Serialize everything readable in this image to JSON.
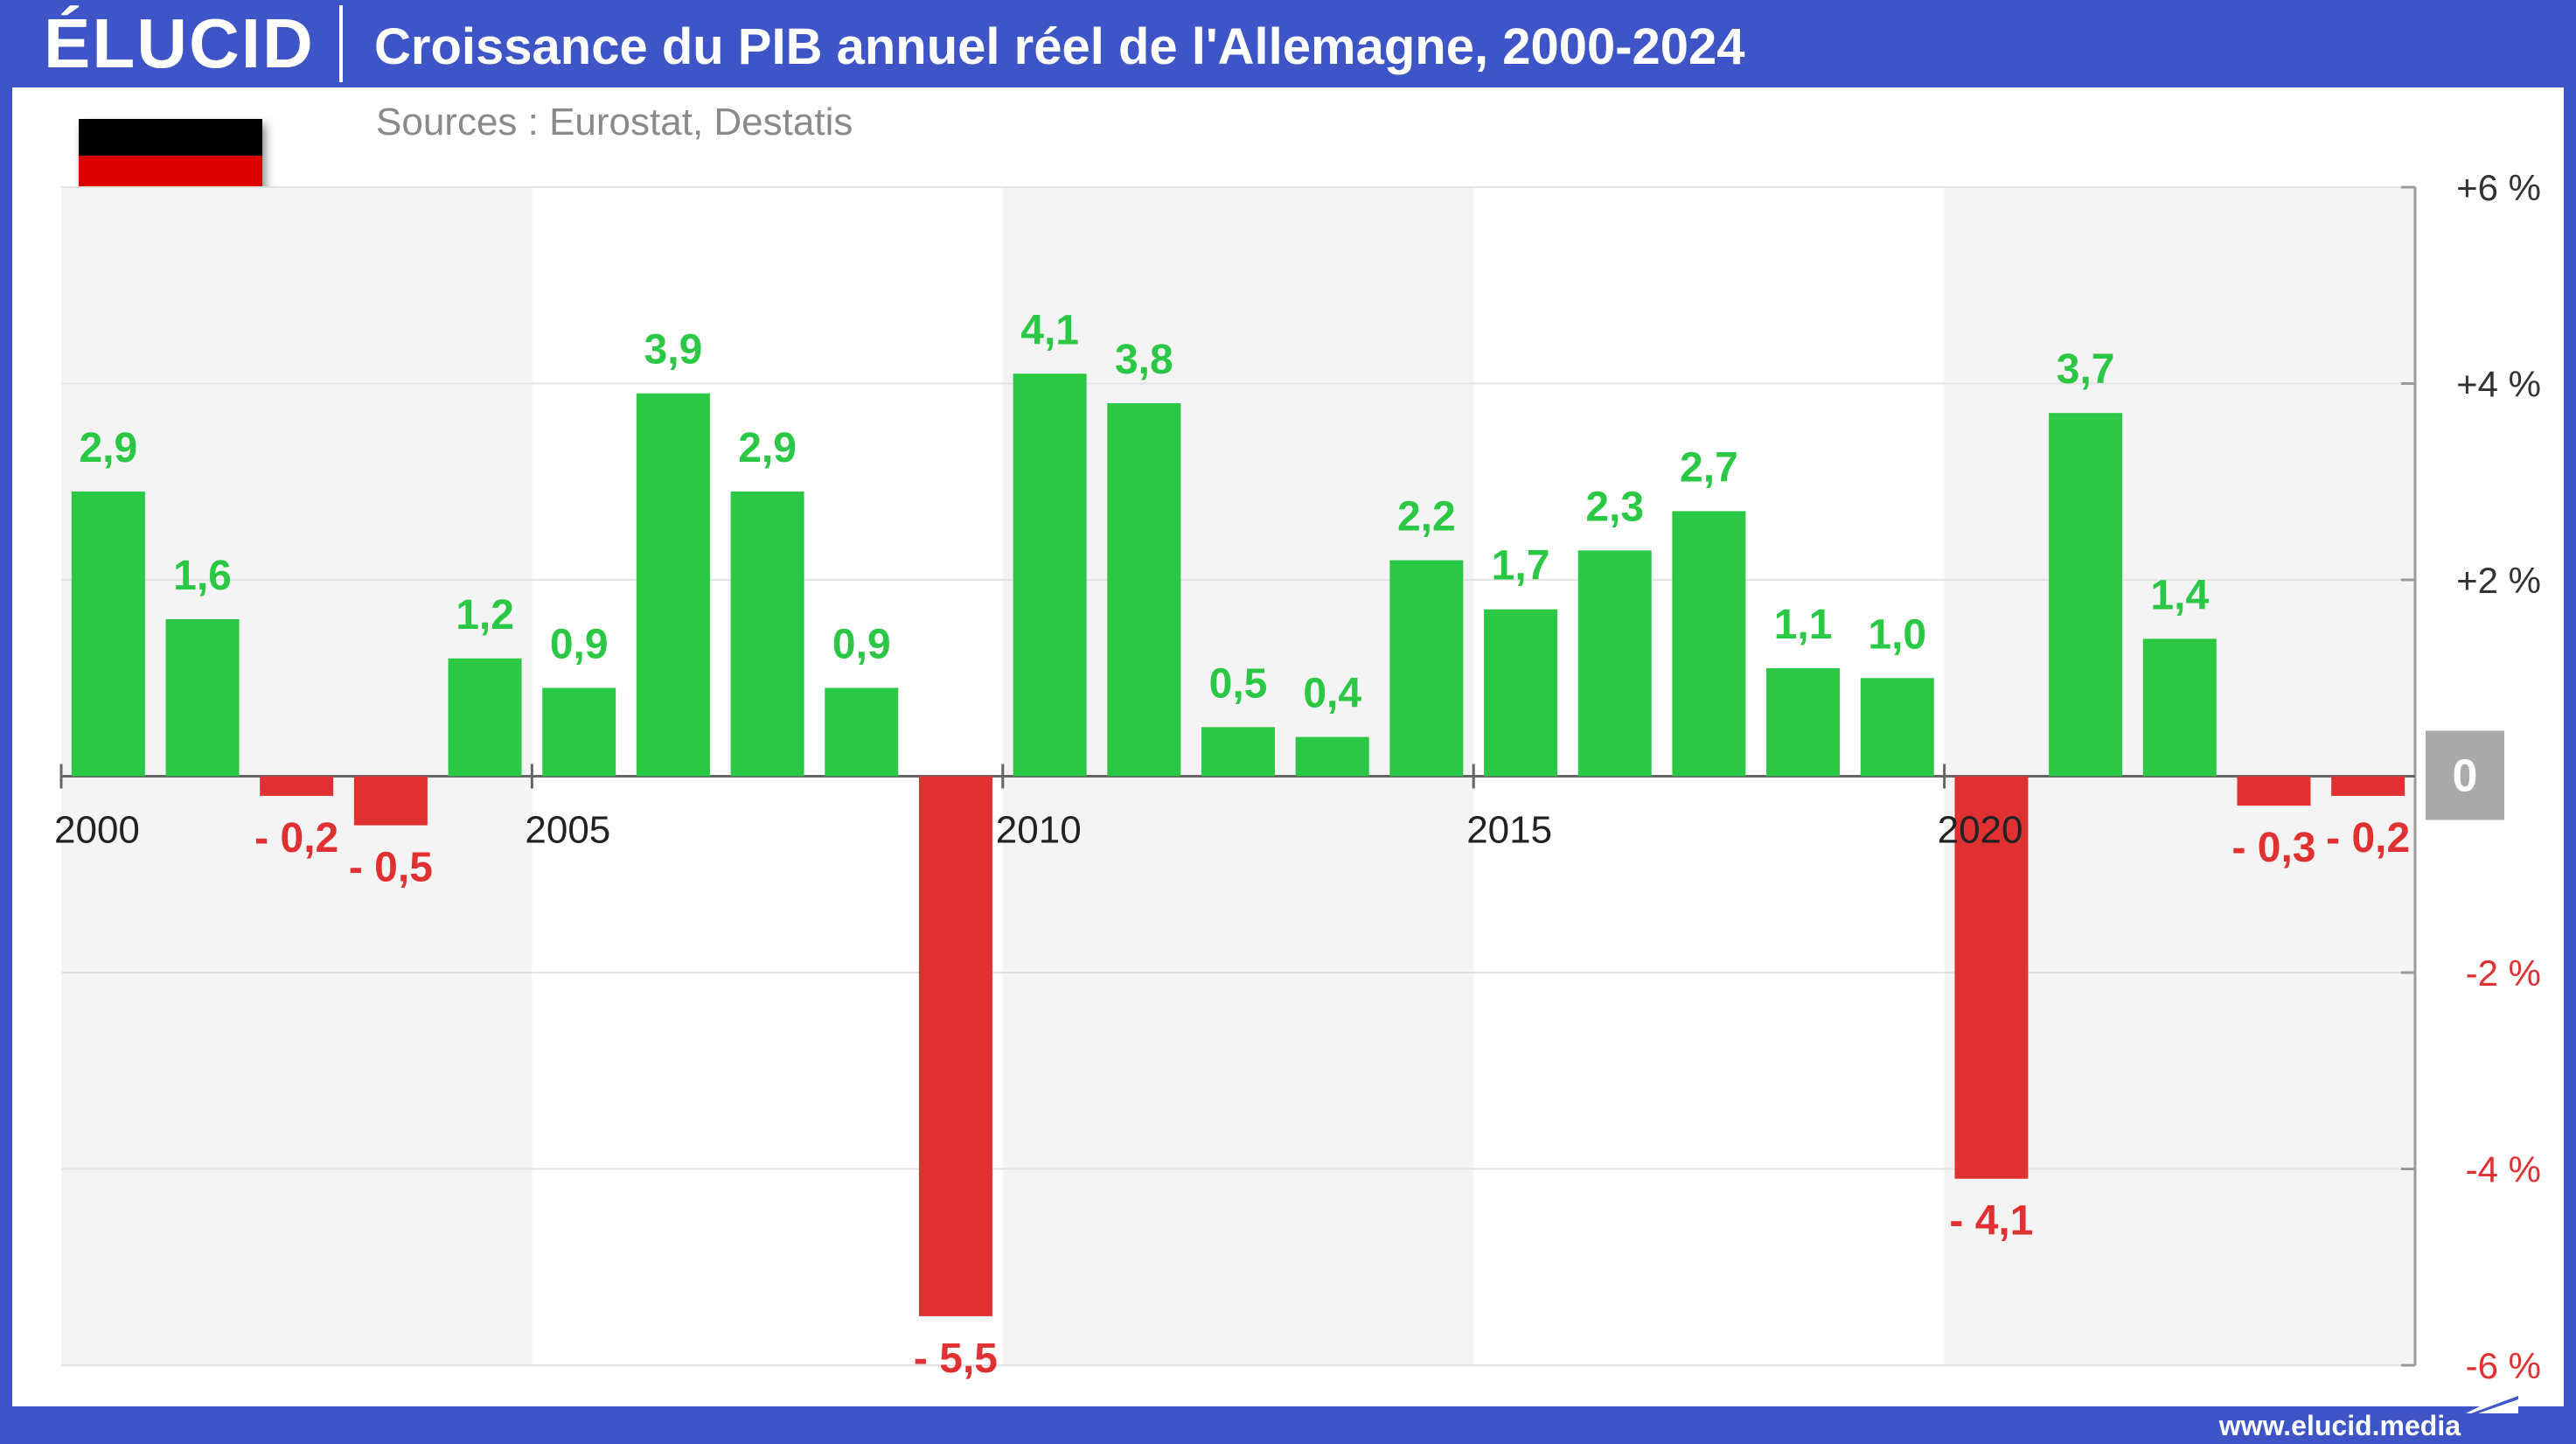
{
  "header": {
    "logo": "ÉLUCID",
    "title": "Croissance du PIB annuel réel de l'Allemagne, 2000-2024",
    "subtitle": "Sources : Eurostat, Destatis"
  },
  "footer": {
    "url": "www.elucid.media"
  },
  "flag": {
    "icon": "germany-flag-icon",
    "colors": [
      "#000000",
      "#dd0000",
      "#ffce00"
    ]
  },
  "colors": {
    "brand": "#3e55c8",
    "positive": "#2ac845",
    "negative": "#df3131",
    "zero_badge": "#aaaaaa",
    "shade": "#f4f4f4"
  },
  "chart_data": {
    "type": "bar",
    "title": "Croissance du PIB annuel réel de l'Allemagne, 2000-2024",
    "categories": [
      "2000",
      "2001",
      "2002",
      "2003",
      "2004",
      "2005",
      "2006",
      "2007",
      "2008",
      "2009",
      "2010",
      "2011",
      "2012",
      "2013",
      "2014",
      "2015",
      "2016",
      "2017",
      "2018",
      "2019",
      "2020",
      "2021",
      "2022",
      "2023",
      "2024"
    ],
    "values": [
      2.9,
      1.6,
      -0.2,
      -0.5,
      1.2,
      0.9,
      3.9,
      2.9,
      0.9,
      -5.5,
      4.1,
      3.8,
      0.5,
      0.4,
      2.2,
      1.7,
      2.3,
      2.7,
      1.1,
      1.0,
      -4.1,
      3.7,
      1.4,
      -0.3,
      -0.2
    ],
    "data_labels": [
      "2,9",
      "1,6",
      "- 0,2",
      "- 0,5",
      "1,2",
      "0,9",
      "3,9",
      "2,9",
      "0,9",
      "- 5,5",
      "4,1",
      "3,8",
      "0,5",
      "0,4",
      "2,2",
      "1,7",
      "2,3",
      "2,7",
      "1,1",
      "1,0",
      "- 4,1",
      "3,7",
      "1,4",
      "- 0,3",
      "- 0,2"
    ],
    "x_tick_labels": [
      "2000",
      "2005",
      "2010",
      "2015",
      "2020"
    ],
    "y_ticks": [
      6,
      4,
      2,
      0,
      -2,
      -4,
      -6
    ],
    "y_tick_labels": [
      "+6 %",
      "+4 %",
      "+2 %",
      "0",
      "-2 %",
      "-4 %",
      "-6 %"
    ],
    "ylim": [
      -6,
      6
    ],
    "grid": true,
    "shaded_periods": [
      [
        2000,
        2004
      ],
      [
        2010,
        2014
      ],
      [
        2020,
        2024
      ]
    ]
  }
}
